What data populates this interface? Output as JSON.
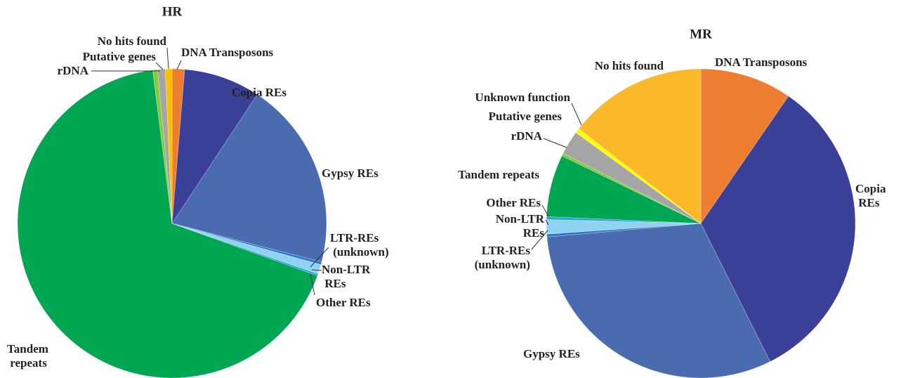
{
  "chart_data": [
    {
      "type": "pie",
      "title": "HR",
      "categories": [
        "DNA Transposons",
        "Copia REs",
        "Gypsy REs",
        "LTR-REs (unknown)",
        "Non-LTR REs",
        "Other REs",
        "Tandem repeats",
        "rDNA",
        "Putative genes",
        "No hits found"
      ],
      "values": [
        1.3,
        8,
        19.7,
        0.3,
        1,
        0.2,
        67.5,
        0.5,
        0.8,
        0.7
      ],
      "colors": [
        "#ed7d31",
        "#3a3f98",
        "#4a6bb0",
        "#2e75d0",
        "#8fd3f0",
        "#2aa0e0",
        "#00a651",
        "#8dc63f",
        "#a5a5a5",
        "#ffc000"
      ]
    },
    {
      "type": "pie",
      "title": "MR",
      "categories": [
        "DNA Transposons",
        "Copia REs",
        "Gypsy REs",
        "LTR-REs (unknown)",
        "Non-LTR REs",
        "Other REs",
        "Tandem repeats",
        "rDNA",
        "Putative genes",
        "Unknown function",
        "No hits found"
      ],
      "values": [
        9.6,
        33,
        31,
        0.3,
        1.5,
        0.3,
        6.5,
        0.3,
        2.5,
        0.5,
        14.5
      ],
      "colors": [
        "#ed7d31",
        "#3a3f98",
        "#4a6bb0",
        "#2e75d0",
        "#8fd3f0",
        "#2aa0e0",
        "#00a651",
        "#8dc63f",
        "#a5a5a5",
        "#ffff00",
        "#fbb829"
      ]
    }
  ]
}
